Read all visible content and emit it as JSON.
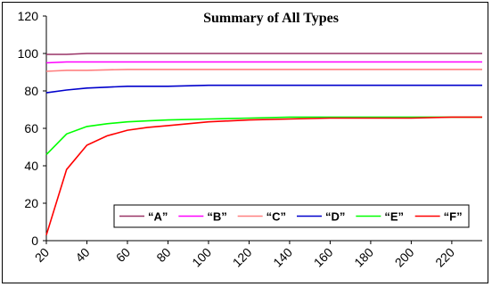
{
  "chart_data": {
    "type": "line",
    "title": "Summary of All Types",
    "xlabel": "",
    "ylabel": "",
    "xlim": [
      20,
      235
    ],
    "ylim": [
      0,
      120
    ],
    "x_ticks": [
      20,
      40,
      60,
      80,
      100,
      120,
      140,
      160,
      180,
      200,
      220
    ],
    "y_ticks": [
      0,
      20,
      40,
      60,
      80,
      100,
      120
    ],
    "grid": false,
    "legend_position": "bottom-right",
    "series": [
      {
        "name": "“A”",
        "color": "#993366",
        "x": [
          20,
          30,
          40,
          60,
          80,
          100,
          120,
          140,
          160,
          180,
          200,
          220,
          235
        ],
        "y": [
          99.5,
          99.5,
          100,
          100,
          100,
          100,
          100,
          100,
          100,
          100,
          100,
          100,
          100
        ]
      },
      {
        "name": "“B”",
        "color": "#ff00ff",
        "x": [
          20,
          30,
          40,
          60,
          80,
          100,
          120,
          140,
          160,
          180,
          200,
          220,
          235
        ],
        "y": [
          95,
          95.5,
          95.5,
          95.5,
          95.5,
          95.5,
          95.5,
          95.5,
          95.5,
          95.5,
          95.5,
          95.5,
          95.5
        ]
      },
      {
        "name": "“C”",
        "color": "#ff8080",
        "x": [
          20,
          30,
          40,
          60,
          80,
          100,
          120,
          140,
          160,
          180,
          200,
          220,
          235
        ],
        "y": [
          90.5,
          91,
          91,
          91.5,
          91.5,
          91.5,
          91.5,
          91.5,
          91.5,
          91.5,
          91.5,
          91.5,
          91.5
        ]
      },
      {
        "name": "“D”",
        "color": "#0000cc",
        "x": [
          20,
          30,
          40,
          50,
          60,
          80,
          100,
          120,
          140,
          160,
          180,
          200,
          220,
          235
        ],
        "y": [
          79,
          80.5,
          81.5,
          82,
          82.5,
          82.5,
          83,
          83,
          83,
          83,
          83,
          83,
          83,
          83
        ]
      },
      {
        "name": "“E”",
        "color": "#00ff00",
        "x": [
          20,
          30,
          40,
          50,
          60,
          70,
          80,
          100,
          120,
          140,
          160,
          180,
          200,
          220,
          235
        ],
        "y": [
          46,
          57,
          61,
          62.5,
          63.5,
          64,
          64.5,
          65,
          65.5,
          66,
          66,
          66,
          66,
          66,
          66
        ]
      },
      {
        "name": "“F”",
        "color": "#ff0000",
        "x": [
          20,
          30,
          40,
          50,
          60,
          70,
          80,
          90,
          100,
          120,
          140,
          160,
          180,
          200,
          220,
          235
        ],
        "y": [
          3,
          38,
          51,
          56,
          59,
          60.5,
          61.5,
          62.5,
          63.5,
          64.5,
          65,
          65.5,
          65.5,
          65.5,
          66,
          66
        ]
      }
    ]
  }
}
